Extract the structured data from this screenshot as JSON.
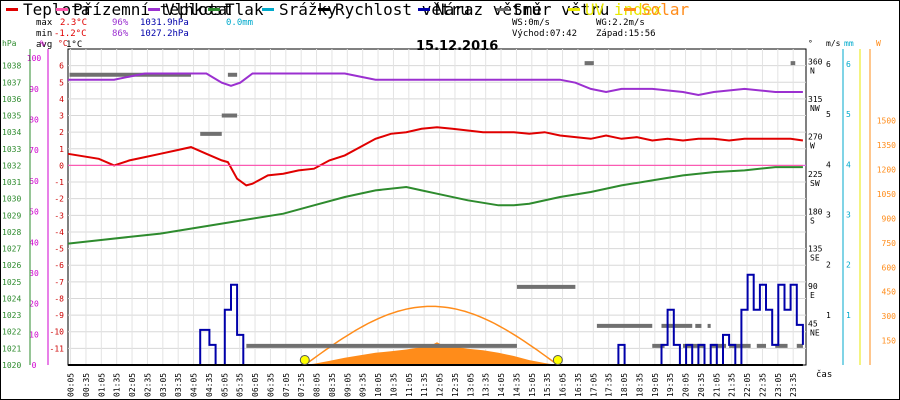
{
  "legend": [
    {
      "label": "Teplota",
      "color": "#e00000"
    },
    {
      "label": "Přízemní teplota",
      "color": "#ff55aa"
    },
    {
      "label": "Vlhkost",
      "color": "#9b30d0"
    },
    {
      "label": "Tlak",
      "color": "#2e8b2e"
    },
    {
      "label": "Srážky",
      "color": "#00aacc"
    },
    {
      "label": "Rychlost větru",
      "color": "#000000"
    },
    {
      "label": "Náraz větru",
      "color": "#0000aa"
    },
    {
      "label": "Směr větru",
      "color": "#707070"
    },
    {
      "label": "UV index",
      "color": "#e8e800"
    },
    {
      "label": "Solar",
      "color": "#ff8c1a"
    }
  ],
  "stats": {
    "max_label": "max",
    "max_temp": "2.3°C",
    "max_hum": "96%",
    "max_press": "1031.9hPa",
    "max_rain": "0.0mm",
    "min_label": "min",
    "min_temp": "-1.2°C",
    "min_hum": "86%",
    "min_press": "1027.2hPa",
    "avg_label": "avg",
    "avg_temp": "1°C"
  },
  "wind_info": {
    "ws": "WS:0m/s",
    "wg": "WG:2.2m/s",
    "sunrise": "Východ:07:42",
    "sunset": "Západ:15:56"
  },
  "date": "15.12.2016",
  "axis_units": {
    "hpa": "hPa",
    "pct": "%",
    "temp": "°C",
    "deg": "°",
    "ms": "m/s",
    "mm": "mm",
    "w": "W",
    "time": "čas"
  },
  "chart_data": {
    "type": "line",
    "title": "15.12.2016",
    "x_ticks": [
      "00:05",
      "00:35",
      "01:05",
      "01:35",
      "02:05",
      "02:35",
      "03:05",
      "03:35",
      "04:05",
      "04:35",
      "05:05",
      "05:35",
      "06:05",
      "06:35",
      "07:05",
      "07:35",
      "08:05",
      "08:35",
      "09:05",
      "09:35",
      "10:05",
      "10:35",
      "11:05",
      "11:35",
      "12:05",
      "12:35",
      "13:05",
      "13:35",
      "14:05",
      "14:35",
      "15:05",
      "15:35",
      "16:05",
      "16:35",
      "17:05",
      "17:35",
      "18:05",
      "18:35",
      "19:05",
      "19:35",
      "20:05",
      "20:35",
      "21:05",
      "21:35",
      "22:05",
      "22:35",
      "23:05",
      "23:35"
    ],
    "axes": {
      "pressure": {
        "unit": "hPa",
        "range": [
          1020,
          1039
        ],
        "ticks": [
          "1020",
          "1021",
          "1022",
          "1023",
          "1024",
          "1025",
          "1026",
          "1027",
          "1028",
          "1029",
          "1030",
          "1031",
          "1032",
          "1033",
          "1034",
          "1035",
          "1036",
          "1037",
          "1038"
        ]
      },
      "humidity": {
        "unit": "%",
        "range": [
          0,
          103
        ],
        "ticks": [
          "0",
          "10",
          "20",
          "30",
          "40",
          "50",
          "60",
          "70",
          "80",
          "90",
          "100"
        ]
      },
      "temperature": {
        "unit": "°C",
        "range": [
          -12,
          7
        ],
        "ticks": [
          "-11",
          "-10",
          "-9",
          "-8",
          "-7",
          "-6",
          "-5",
          "-4",
          "-3",
          "-2",
          "-1",
          "0",
          "1",
          "2",
          "3",
          "4",
          "5",
          "6"
        ]
      },
      "wind_dir": {
        "unit": "°",
        "range": [
          0,
          380
        ],
        "ticks": [
          "45",
          "90",
          "135",
          "180",
          "225",
          "270",
          "315",
          "360"
        ],
        "labels": [
          "NE",
          "E",
          "SE",
          "S",
          "SW",
          "W",
          "NW",
          "N"
        ]
      },
      "wind_speed": {
        "unit": "m/s",
        "range": [
          0,
          6.3
        ],
        "ticks": [
          "1",
          "2",
          "3",
          "4",
          "5",
          "6"
        ]
      },
      "rain": {
        "unit": "mm",
        "range": [
          0,
          6.3
        ],
        "ticks": [
          "1",
          "2",
          "3",
          "4",
          "5",
          "6"
        ]
      },
      "solar": {
        "unit": "W",
        "range": [
          0,
          1940
        ],
        "ticks": [
          "150",
          "300",
          "450",
          "600",
          "750",
          "900",
          "1050",
          "1200",
          "1350",
          "1500"
        ]
      }
    },
    "series": [
      {
        "name": "Teplota",
        "axis": "temperature",
        "color": "#e00000",
        "t": [
          0,
          1,
          1.5,
          2,
          2.5,
          3,
          3.5,
          4,
          4.5,
          5,
          5.2,
          5.5,
          5.8,
          6,
          6.3,
          6.5,
          7,
          7.5,
          8,
          8.5,
          9,
          9.5,
          10,
          10.5,
          11,
          11.5,
          12,
          12.5,
          13,
          13.5,
          14,
          14.5,
          15,
          15.5,
          16,
          16.5,
          17,
          17.5,
          18,
          18.5,
          19,
          19.5,
          20,
          20.5,
          21,
          21.5,
          22,
          22.5,
          23,
          23.5,
          23.9
        ],
        "v": [
          0.7,
          0.4,
          0,
          0.3,
          0.5,
          0.7,
          0.9,
          1.1,
          0.7,
          0.3,
          0.2,
          -0.8,
          -1.2,
          -1.1,
          -0.8,
          -0.6,
          -0.5,
          -0.3,
          -0.2,
          0.3,
          0.6,
          1.1,
          1.6,
          1.9,
          2.0,
          2.2,
          2.3,
          2.2,
          2.1,
          2.0,
          2.0,
          2.0,
          1.9,
          2.0,
          1.8,
          1.7,
          1.6,
          1.8,
          1.6,
          1.7,
          1.5,
          1.6,
          1.5,
          1.6,
          1.6,
          1.5,
          1.6,
          1.6,
          1.6,
          1.6,
          1.5
        ]
      },
      {
        "name": "Vlhkost",
        "axis": "humidity",
        "color": "#9b30d0",
        "t": [
          0,
          1,
          1.5,
          2,
          2.5,
          3,
          4,
          4.5,
          5,
          5.3,
          5.6,
          6,
          7,
          8,
          9,
          9.5,
          10,
          11,
          12,
          13,
          14,
          15,
          16,
          16.5,
          17,
          17.5,
          18,
          19,
          20,
          20.5,
          21,
          22,
          23,
          23.9
        ],
        "v": [
          93,
          93,
          93,
          94,
          95,
          95,
          95,
          95,
          92,
          91,
          92,
          95,
          95,
          95,
          95,
          94,
          93,
          93,
          93,
          93,
          93,
          93,
          93,
          92,
          90,
          89,
          90,
          90,
          89,
          88,
          89,
          90,
          89,
          89
        ]
      },
      {
        "name": "Tlak",
        "axis": "pressure",
        "color": "#2e8b2e",
        "t": [
          0,
          1,
          2,
          3,
          4,
          5,
          6,
          7,
          8,
          9,
          10,
          11,
          11.5,
          12,
          13,
          14,
          14.5,
          15,
          16,
          17,
          18,
          19,
          20,
          21,
          22,
          23,
          23.9
        ],
        "v": [
          1027.3,
          1027.5,
          1027.7,
          1027.9,
          1028.2,
          1028.5,
          1028.8,
          1029.1,
          1029.6,
          1030.1,
          1030.5,
          1030.7,
          1030.5,
          1030.3,
          1029.9,
          1029.6,
          1029.6,
          1029.7,
          1030.1,
          1030.4,
          1030.8,
          1031.1,
          1031.4,
          1031.6,
          1031.7,
          1031.9,
          1031.9
        ]
      },
      {
        "name": "Přízemní teplota",
        "axis": "temperature",
        "color": "#ff55aa",
        "t": [
          0,
          23.9
        ],
        "v": [
          0,
          0
        ]
      },
      {
        "name": "Náraz větru",
        "axis": "wind_speed",
        "color": "#0000aa",
        "step": true,
        "t": [
          0,
          4.1,
          4.3,
          4.6,
          4.8,
          5.1,
          5.3,
          5.5,
          5.7,
          17.7,
          17.9,
          18.1,
          19.3,
          19.5,
          19.7,
          19.9,
          20.1,
          20.3,
          20.5,
          20.7,
          20.9,
          21.1,
          21.3,
          21.5,
          21.7,
          21.9,
          22.1,
          22.3,
          22.5,
          22.7,
          22.9,
          23.1,
          23.3,
          23.5,
          23.7,
          23.9
        ],
        "v": [
          0,
          0,
          0.7,
          0.4,
          0,
          1.1,
          1.6,
          0.6,
          0,
          0,
          0.4,
          0,
          0.4,
          1.1,
          0.4,
          0,
          0.4,
          0,
          0.4,
          0,
          0.4,
          0,
          0.6,
          0.4,
          0,
          1.1,
          1.8,
          1.1,
          1.6,
          1.1,
          0.4,
          1.6,
          1.1,
          1.6,
          0.8,
          0.4
        ]
      },
      {
        "name": "Rychlost větru",
        "axis": "wind_speed",
        "color": "#000000",
        "t": [
          0,
          23.9
        ],
        "v": [
          0,
          0
        ]
      }
    ],
    "wind_direction_segments": [
      {
        "t0": 0.05,
        "t1": 4.0,
        "deg": 349
      },
      {
        "t0": 5.2,
        "t1": 5.5,
        "deg": 349
      },
      {
        "t0": 4.3,
        "t1": 5.0,
        "deg": 278
      },
      {
        "t0": 5.0,
        "t1": 5.5,
        "deg": 300
      },
      {
        "t0": 5.8,
        "t1": 14.6,
        "deg": 23
      },
      {
        "t0": 14.6,
        "t1": 16.5,
        "deg": 94
      },
      {
        "t0": 16.8,
        "t1": 17.1,
        "deg": 363
      },
      {
        "t0": 17.2,
        "t1": 19.0,
        "deg": 47
      },
      {
        "t0": 19.3,
        "t1": 20.3,
        "deg": 47
      },
      {
        "t0": 20.4,
        "t1": 20.6,
        "deg": 47
      },
      {
        "t0": 20.8,
        "t1": 20.9,
        "deg": 47
      },
      {
        "t0": 19.0,
        "t1": 19.4,
        "deg": 23
      },
      {
        "t0": 20.0,
        "t1": 20.7,
        "deg": 23
      },
      {
        "t0": 20.9,
        "t1": 21.4,
        "deg": 23
      },
      {
        "t0": 21.5,
        "t1": 22.2,
        "deg": 23
      },
      {
        "t0": 22.4,
        "t1": 22.7,
        "deg": 23
      },
      {
        "t0": 23.0,
        "t1": 23.4,
        "deg": 23
      },
      {
        "t0": 23.7,
        "t1": 23.9,
        "deg": 23
      },
      {
        "t0": 23.5,
        "t1": 23.65,
        "deg": 363
      }
    ],
    "solar_theoretical": {
      "sunrise_h": 7.7,
      "sunset_h": 15.93,
      "max_w": 360
    },
    "solar_measured": {
      "t": [
        7.6,
        8,
        8.5,
        9,
        9.5,
        10,
        10.5,
        11,
        11.5,
        11.8,
        12,
        12.2,
        12.5,
        13,
        13.5,
        14,
        14.5,
        15,
        15.5,
        15.9
      ],
      "v": [
        0,
        8,
        25,
        45,
        60,
        75,
        85,
        95,
        110,
        120,
        140,
        120,
        115,
        100,
        90,
        75,
        55,
        30,
        12,
        0
      ]
    },
    "uv_markers": [
      7.7,
      15.93
    ]
  }
}
